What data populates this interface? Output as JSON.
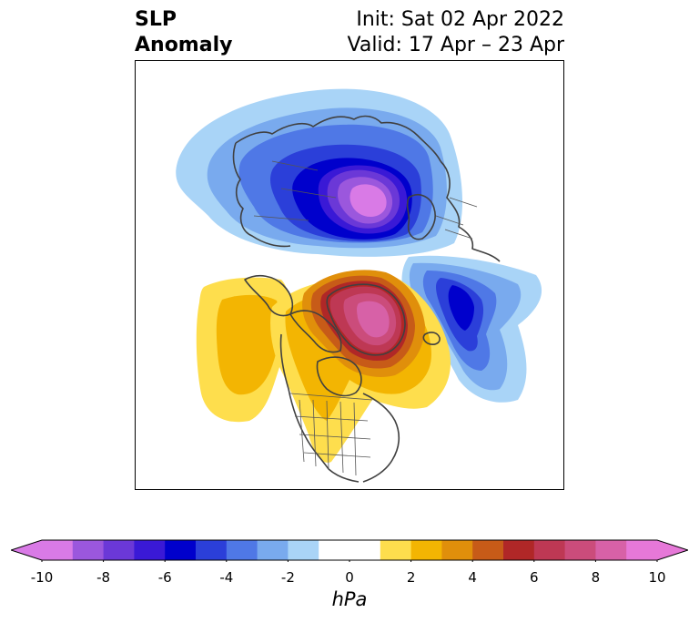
{
  "header": {
    "title_line1": "SLP",
    "title_line2": "Anomaly",
    "init": "Init: Sat 02 Apr 2022",
    "valid": "Valid: 17 Apr – 23 Apr"
  },
  "map": {
    "projection": "north-polar-stereographic",
    "features": [
      "coastlines",
      "country-borders",
      "us-state-borders",
      "canada-province-borders"
    ],
    "anomalies": [
      {
        "name": "negative-slp-arctic-siberia",
        "sign": "negative",
        "min_hPa": -10
      },
      {
        "name": "negative-slp-north-atlantic",
        "sign": "negative",
        "min_hPa": -6
      },
      {
        "name": "positive-slp-greenland",
        "sign": "positive",
        "max_hPa": 9
      },
      {
        "name": "positive-slp-north-pacific",
        "sign": "positive",
        "max_hPa": 3
      },
      {
        "name": "positive-slp-north-america",
        "sign": "positive",
        "max_hPa": 2
      }
    ]
  },
  "colorbar": {
    "unit": "hPa",
    "extend": "both",
    "boundaries": [
      -10,
      -9,
      -8,
      -7,
      -6,
      -5,
      -4,
      -3,
      -2,
      -1,
      1,
      2,
      3,
      4,
      5,
      6,
      7,
      8,
      9,
      10
    ],
    "colors": [
      "#d97ae6",
      "#9b57dd",
      "#6b38d7",
      "#3a19d6",
      "#0000cc",
      "#2b3fd9",
      "#4f78e6",
      "#79aaee",
      "#a9d4f7",
      "#ffffff",
      "#fede4d",
      "#f3b502",
      "#e08f0b",
      "#c75b18",
      "#b02727",
      "#be3854",
      "#cb4c7b",
      "#d761a7",
      "#e678d8"
    ],
    "under_color": "#d97ae6",
    "over_color": "#e678d8",
    "tick_values": [
      -10,
      -8,
      -6,
      -4,
      -2,
      0,
      2,
      4,
      6,
      8,
      10
    ],
    "tick_labels": [
      "-10",
      "-8",
      "-6",
      "-4",
      "-2",
      "0",
      "2",
      "4",
      "6",
      "8",
      "10"
    ]
  }
}
